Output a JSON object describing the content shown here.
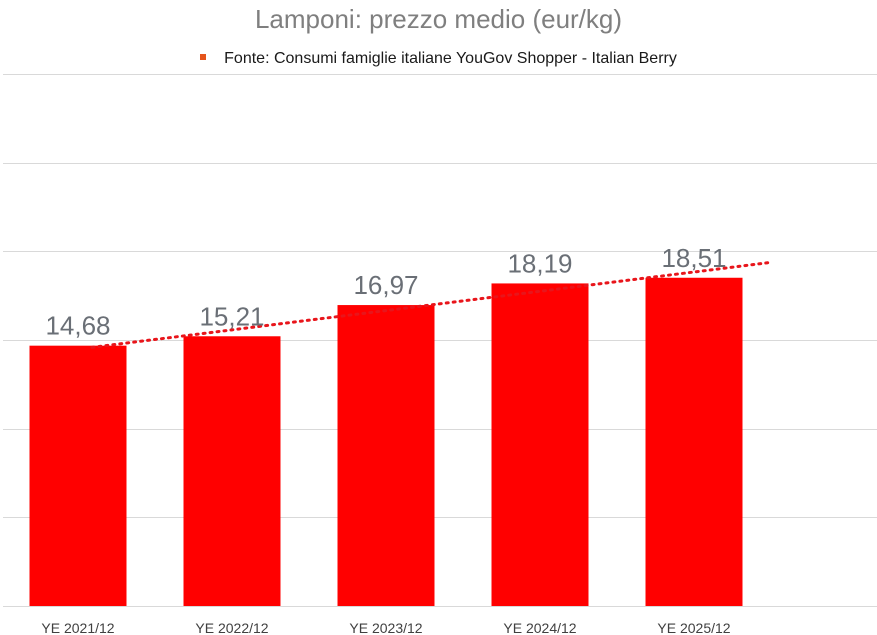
{
  "chart_data": {
    "type": "bar",
    "title": "Lamponi: prezzo medio (eur/kg)",
    "legend": {
      "entries": [
        "Fonte: Consumi famiglie italiane YouGov Shopper - Italian Berry"
      ],
      "placement": "top"
    },
    "categories": [
      "YE 2021/12",
      "YE 2022/12",
      "YE 2023/12",
      "YE 2024/12",
      "YE 2025/12"
    ],
    "values": [
      14.68,
      15.21,
      16.97,
      18.19,
      18.51
    ],
    "value_labels": [
      "14,68",
      "15,21",
      "16,97",
      "18,19",
      "18,51"
    ],
    "trendline": {
      "type": "linear",
      "style": "dotted"
    },
    "ylim": [
      0,
      30
    ],
    "yticks": [
      0,
      5,
      10,
      15,
      20,
      25,
      30
    ],
    "grid": true,
    "y_axis_labels_visible": false,
    "colors": {
      "bar": "#ff0000",
      "trend": "#e8151b",
      "legend_marker": "#e5541b",
      "title": "#7f7f7f"
    }
  }
}
